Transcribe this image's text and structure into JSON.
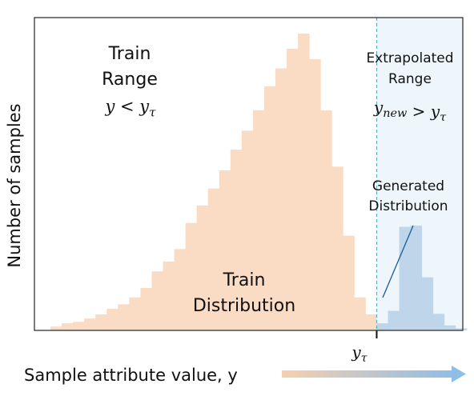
{
  "chart_data": {
    "type": "bar",
    "xlabel": "Sample attribute value, y",
    "ylabel": "Number of samples",
    "threshold_label": "y_τ",
    "xlim": [
      0,
      42
    ],
    "ylim": [
      0,
      100
    ],
    "threshold_x": 29.5,
    "grid": false,
    "colors": {
      "train": "#f9dcc3",
      "generated": "#b9d3e8",
      "extrapolated_region": "#eef6fb",
      "threshold_line": "#5ab0c4",
      "pointer_line": "#1a5b99",
      "arrow_start": "#f7cfae",
      "arrow_end": "#8fbde6"
    },
    "series": [
      {
        "name": "Train Distribution",
        "x": [
          1,
          2,
          3,
          4,
          5,
          6,
          7,
          8,
          9,
          10,
          11,
          12,
          13,
          14,
          15,
          16,
          17,
          18,
          19,
          20,
          21,
          22,
          23,
          24,
          25,
          26,
          27,
          28,
          29,
          30
        ],
        "values": [
          1.3,
          2.4,
          2.9,
          4.0,
          5.4,
          7.3,
          8.8,
          11.1,
          14.3,
          19.9,
          23.2,
          27.4,
          36.2,
          42.1,
          47.8,
          53.9,
          60.9,
          67.3,
          74.2,
          82.2,
          88.3,
          94.9,
          100,
          91.4,
          74.1,
          55.2,
          31.9,
          11.1,
          5.4,
          1.2
        ]
      },
      {
        "name": "Generated Distribution",
        "x": [
          30,
          31,
          32,
          33,
          34,
          35,
          36,
          37
        ],
        "values": [
          2.4,
          6.6,
          34.9,
          35.3,
          17.9,
          5.6,
          1.7,
          0.7
        ]
      }
    ],
    "annotations": {
      "train_range_line1": "Train",
      "train_range_line2": "Range",
      "train_range_math": "y < y_τ",
      "extrapolated_line1": "Extrapolated",
      "extrapolated_line2": "Range",
      "extrapolated_math": "y_new > y_τ",
      "generated_line1": "Generated",
      "generated_line2": "Distribution",
      "train_dist_line1": "Train",
      "train_dist_line2": "Distribution"
    }
  }
}
